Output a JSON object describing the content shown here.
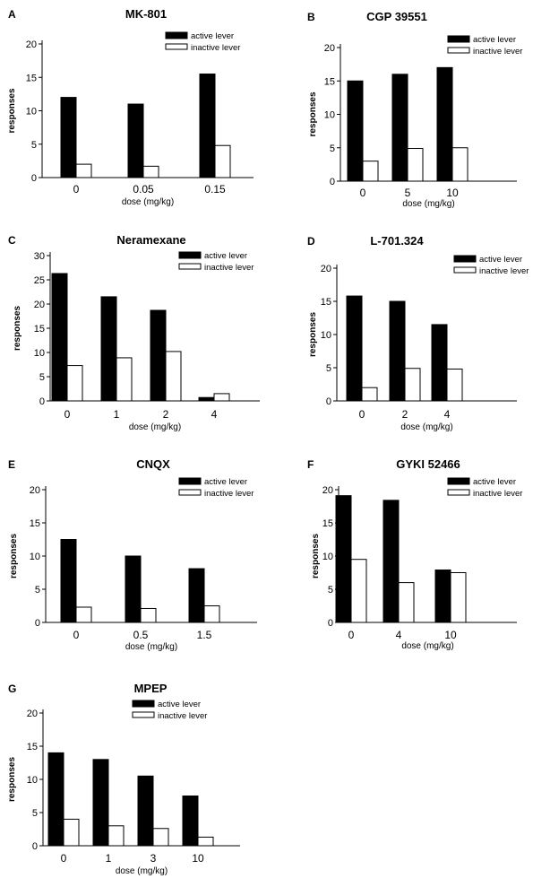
{
  "legend_colors": {
    "active": "#000000",
    "inactive": "#ffffff",
    "stroke": "#000000"
  },
  "chart_data": [
    {
      "letter": "A",
      "title": "MK-801",
      "type": "bar",
      "categories": [
        "0",
        "0.05",
        "0.15"
      ],
      "series": [
        {
          "name": "active lever",
          "values": [
            12.0,
            11.0,
            15.5
          ]
        },
        {
          "name": "inactive lever",
          "values": [
            2.0,
            1.7,
            4.8
          ]
        }
      ],
      "xlabel": "dose (mg/kg)",
      "ylabel": "responses",
      "ylim": [
        0,
        20
      ],
      "yticks": [
        0,
        5,
        10,
        15,
        20
      ],
      "grid": false,
      "legend": "top-right"
    },
    {
      "letter": "B",
      "title": "CGP 39551",
      "type": "bar",
      "categories": [
        "0",
        "5",
        "10"
      ],
      "series": [
        {
          "name": "active lever",
          "values": [
            15.0,
            16.0,
            17.0
          ]
        },
        {
          "name": "inactive lever",
          "values": [
            3.0,
            4.9,
            5.0
          ]
        }
      ],
      "xlabel": "dose (mg/kg)",
      "ylabel": "responses",
      "ylim": [
        0,
        20
      ],
      "yticks": [
        0,
        5,
        10,
        15,
        20
      ],
      "grid": false,
      "legend": "top-right"
    },
    {
      "letter": "C",
      "title": "Neramexane",
      "type": "bar",
      "categories": [
        "0",
        "1",
        "2",
        "4"
      ],
      "series": [
        {
          "name": "active lever",
          "values": [
            26.3,
            21.5,
            18.7,
            0.7
          ]
        },
        {
          "name": "inactive lever",
          "values": [
            7.3,
            8.9,
            10.2,
            1.5
          ]
        }
      ],
      "xlabel": "dose (mg/kg)",
      "ylabel": "responses",
      "ylim": [
        0,
        30
      ],
      "yticks": [
        0,
        5,
        10,
        15,
        20,
        25,
        30
      ],
      "grid": false,
      "legend": "top-right"
    },
    {
      "letter": "D",
      "title": "L-701.324",
      "type": "bar",
      "categories": [
        "0",
        "2",
        "4"
      ],
      "series": [
        {
          "name": "active lever",
          "values": [
            15.8,
            15.0,
            11.5
          ]
        },
        {
          "name": "inactive lever",
          "values": [
            2.0,
            4.9,
            4.8
          ]
        }
      ],
      "xlabel": "dose (mg/kg)",
      "ylabel": "responses",
      "ylim": [
        0,
        20
      ],
      "yticks": [
        0,
        5,
        10,
        15,
        20
      ],
      "grid": false,
      "legend": "top-right"
    },
    {
      "letter": "E",
      "title": "CNQX",
      "type": "bar",
      "categories": [
        "0",
        "0.5",
        "1.5"
      ],
      "series": [
        {
          "name": "active lever",
          "values": [
            12.5,
            10.0,
            8.1
          ]
        },
        {
          "name": "inactive lever",
          "values": [
            2.3,
            2.1,
            2.5
          ]
        }
      ],
      "xlabel": "dose (mg/kg)",
      "ylabel": "responses",
      "ylim": [
        0,
        20
      ],
      "yticks": [
        0,
        5,
        10,
        15,
        20
      ],
      "grid": false,
      "legend": "top-right"
    },
    {
      "letter": "F",
      "title": "GYKI 52466",
      "type": "bar",
      "categories": [
        "0",
        "4",
        "10"
      ],
      "series": [
        {
          "name": "active lever",
          "values": [
            19.1,
            18.4,
            7.9
          ]
        },
        {
          "name": "inactive lever",
          "values": [
            9.5,
            6.0,
            7.5
          ]
        }
      ],
      "xlabel": "dose (mg/kg)",
      "ylabel": "responses",
      "ylim": [
        0,
        20
      ],
      "yticks": [
        0,
        5,
        10,
        15,
        20
      ],
      "grid": false,
      "legend": "top-right"
    },
    {
      "letter": "G",
      "title": "MPEP",
      "type": "bar",
      "categories": [
        "0",
        "1",
        "3",
        "10"
      ],
      "series": [
        {
          "name": "active lever",
          "values": [
            14.0,
            13.0,
            10.5,
            7.5
          ]
        },
        {
          "name": "inactive lever",
          "values": [
            4.0,
            3.0,
            2.6,
            1.3
          ]
        }
      ],
      "xlabel": "dose (mg/kg)",
      "ylabel": "responses",
      "ylim": [
        0,
        20
      ],
      "yticks": [
        0,
        5,
        10,
        15,
        20
      ],
      "grid": false,
      "legend": "top-right"
    }
  ]
}
